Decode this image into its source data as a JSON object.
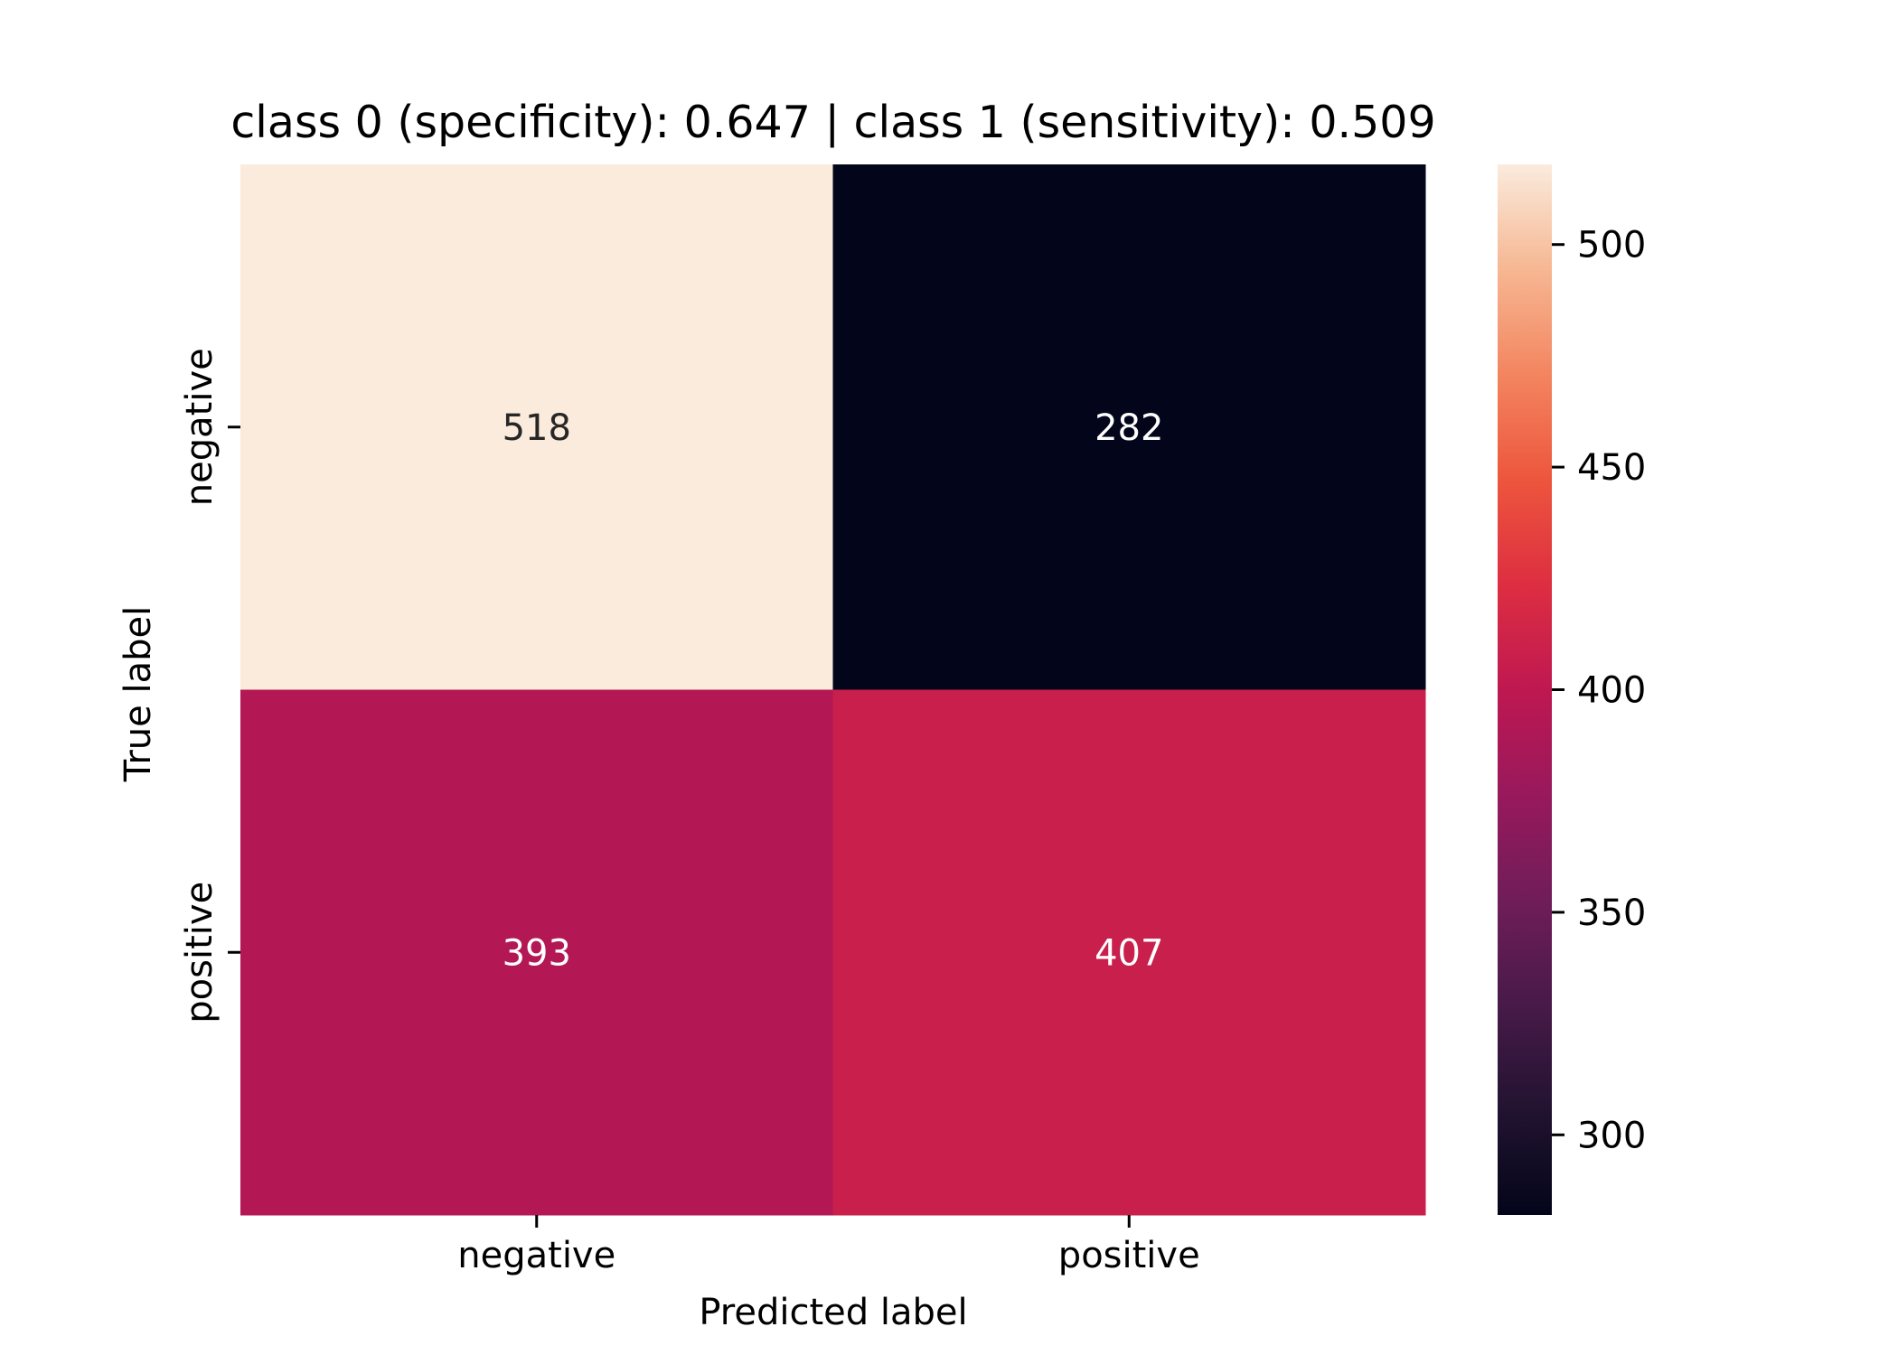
{
  "chart_data": {
    "type": "heatmap",
    "title": "class 0 (specificity): 0.647 | class 1 (sensitivity): 0.509",
    "xlabel": "Predicted label",
    "ylabel": "True label",
    "x_categories": [
      "negative",
      "positive"
    ],
    "y_categories": [
      "negative",
      "positive"
    ],
    "values": [
      [
        518,
        282
      ],
      [
        393,
        407
      ]
    ],
    "colorbar": {
      "min": 282,
      "max": 518,
      "ticks": [
        300,
        350,
        400,
        450,
        500
      ],
      "colormap": "rocket"
    },
    "legend_position": "right"
  }
}
